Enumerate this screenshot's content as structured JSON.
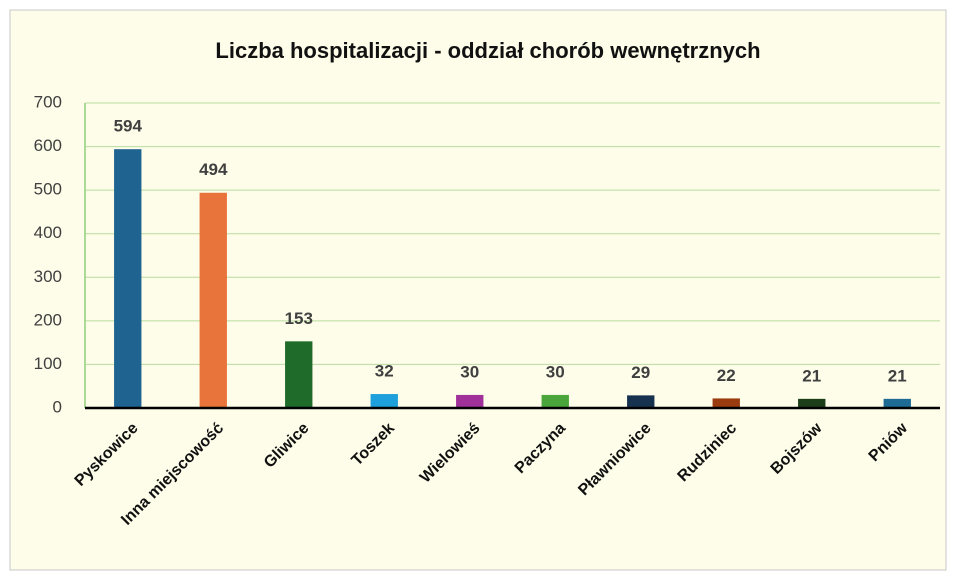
{
  "chart_data": {
    "type": "bar",
    "title": "Liczba hospitalizacji - oddział chorób wewnętrznych",
    "categories": [
      "Pyskowice",
      "Inna miejscowość",
      "Gliwice",
      "Toszek",
      "Wielowieś",
      "Paczyna",
      "Pławniowice",
      "Rudziniec",
      "Bojszów",
      "Pniów"
    ],
    "values": [
      594,
      494,
      153,
      32,
      30,
      30,
      29,
      22,
      21,
      21
    ],
    "colors": [
      "#1f6391",
      "#e8743b",
      "#1e6b2a",
      "#1ea0dc",
      "#a0309a",
      "#4aa63a",
      "#17324f",
      "#9a3c10",
      "#1c3f1a",
      "#1e6b96"
    ],
    "ylim": [
      0,
      700
    ],
    "yticks": [
      0,
      100,
      200,
      300,
      400,
      500,
      600,
      700
    ],
    "grid": true
  }
}
